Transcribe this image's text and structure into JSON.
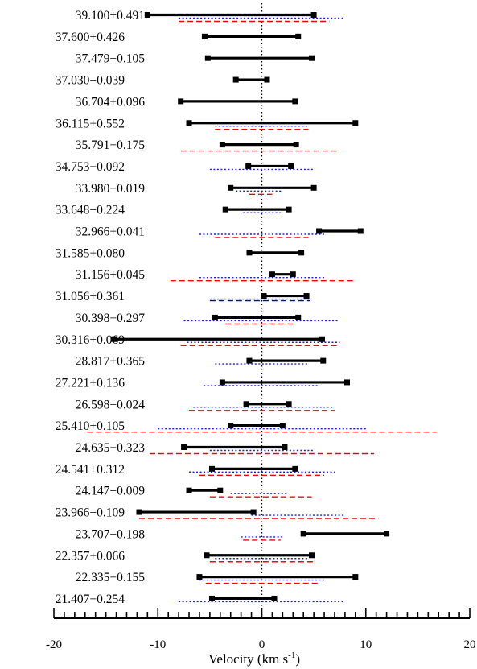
{
  "chart_data": {
    "type": "range",
    "xlabel": "Velocity (km s",
    "xlabel_sup": "-1",
    "xlabel_close": ")",
    "xlim": [
      -20,
      20
    ],
    "x_ticks": [
      "-20",
      "-10",
      "0",
      "10",
      "20"
    ],
    "colors": {
      "black_bar": "#000000",
      "blue_dotted": "#1a1aff",
      "red_dashed": "#ff0000",
      "blue_dashed": "#0000cc"
    },
    "series_style": {
      "black": "solid thick line with square end markers",
      "blue": "dotted line",
      "red": "dashed line"
    },
    "sources": [
      {
        "name": "39.100+0.491",
        "black": [
          -11,
          5
        ],
        "blue": [
          -8,
          8
        ],
        "red": [
          -8,
          6.5
        ]
      },
      {
        "name": "37.600+0.426",
        "black": [
          -5.5,
          3.5
        ]
      },
      {
        "name": "37.479−0.105",
        "black": [
          -5.2,
          4.8
        ]
      },
      {
        "name": "37.030−0.039",
        "black": [
          -2.5,
          0.5
        ]
      },
      {
        "name": "36.704+0.096",
        "black": [
          -7.8,
          3.2
        ]
      },
      {
        "name": "36.115+0.552",
        "black": [
          -7,
          9
        ],
        "blue": [
          -4.5,
          4.5
        ],
        "red": [
          -4.5,
          4.5
        ]
      },
      {
        "name": "35.791−0.175",
        "black": [
          -3.8,
          3.3
        ],
        "red": [
          -7.8,
          7.5
        ]
      },
      {
        "name": "34.753−0.092",
        "black": [
          -1.3,
          2.8
        ],
        "blue": [
          -5,
          5
        ]
      },
      {
        "name": "33.980−0.019",
        "black": [
          -3,
          5
        ],
        "blue": [
          -2.5,
          2
        ],
        "red": [
          -1.2,
          1
        ]
      },
      {
        "name": "33.648−0.224",
        "black": [
          -3.5,
          2.6
        ],
        "blue": [
          -1.8,
          1.8
        ]
      },
      {
        "name": "32.966+0.041",
        "black": [
          5.5,
          9.5
        ],
        "blue": [
          -6,
          6
        ],
        "red": [
          -4.5,
          4.5
        ]
      },
      {
        "name": "31.585+0.080",
        "black": [
          -1.2,
          3.8
        ]
      },
      {
        "name": "31.156+0.045",
        "black": [
          1,
          3
        ],
        "blue": [
          -6,
          6
        ],
        "red": [
          -8.8,
          8.8
        ]
      },
      {
        "name": "31.056+0.361",
        "black": [
          0.2,
          4.3
        ],
        "blue": [
          -5,
          4.6
        ],
        "blue_dashed": [
          -5,
          4.6
        ]
      },
      {
        "name": "30.398−0.297",
        "black": [
          -4.5,
          3.5
        ],
        "blue": [
          -7.5,
          7.3
        ],
        "red": [
          -3.5,
          3.2
        ]
      },
      {
        "name": "30.316+0.069",
        "black": [
          -14.2,
          5.8
        ],
        "blue": [
          -7.2,
          7.5
        ],
        "red": [
          -7.8,
          7.5
        ]
      },
      {
        "name": "28.817+0.365",
        "black": [
          -1.2,
          5.9
        ],
        "blue": [
          -4.5,
          4.5
        ]
      },
      {
        "name": "27.221+0.136",
        "black": [
          -3.8,
          8.2
        ],
        "blue": [
          -5.6,
          5.5
        ]
      },
      {
        "name": "26.598−0.024",
        "black": [
          -1.5,
          2.6
        ],
        "blue": [
          -6.6,
          6.9
        ],
        "red": [
          -7,
          7
        ]
      },
      {
        "name": "25.410+0.105",
        "black": [
          -3,
          2
        ],
        "blue": [
          -10,
          10
        ],
        "red": [
          -16.8,
          16.8
        ]
      },
      {
        "name": "24.635−0.323",
        "black": [
          -7.5,
          2.2
        ],
        "blue": [
          -5,
          5
        ],
        "red": [
          -10.8,
          10.8
        ]
      },
      {
        "name": "24.541+0.312",
        "black": [
          -4.8,
          3.2
        ],
        "blue": [
          -7,
          7
        ],
        "red": [
          -6,
          6
        ]
      },
      {
        "name": "24.147−0.009",
        "black": [
          -7,
          -4
        ],
        "blue": [
          -3,
          2.4
        ],
        "red": [
          -5,
          4.8
        ]
      },
      {
        "name": "23.966−0.109",
        "black": [
          -11.8,
          -0.8
        ],
        "blue": [
          -1,
          8
        ],
        "red": [
          -11.8,
          11.2
        ]
      },
      {
        "name": "23.707−0.198",
        "black": [
          4,
          12
        ],
        "blue": [
          -2,
          2
        ],
        "red": [
          -1.8,
          1.8
        ]
      },
      {
        "name": "22.357+0.066",
        "black": [
          -5.3,
          4.8
        ],
        "blue": [
          -4.5,
          4.5
        ],
        "red": [
          -5,
          5
        ]
      },
      {
        "name": "22.335−0.155",
        "black": [
          -6,
          9
        ],
        "blue": [
          -6,
          6
        ],
        "red": [
          -5.4,
          5.4
        ]
      },
      {
        "name": "21.407−0.254",
        "black": [
          -4.8,
          1.2
        ],
        "blue": [
          -8,
          8
        ]
      }
    ]
  }
}
